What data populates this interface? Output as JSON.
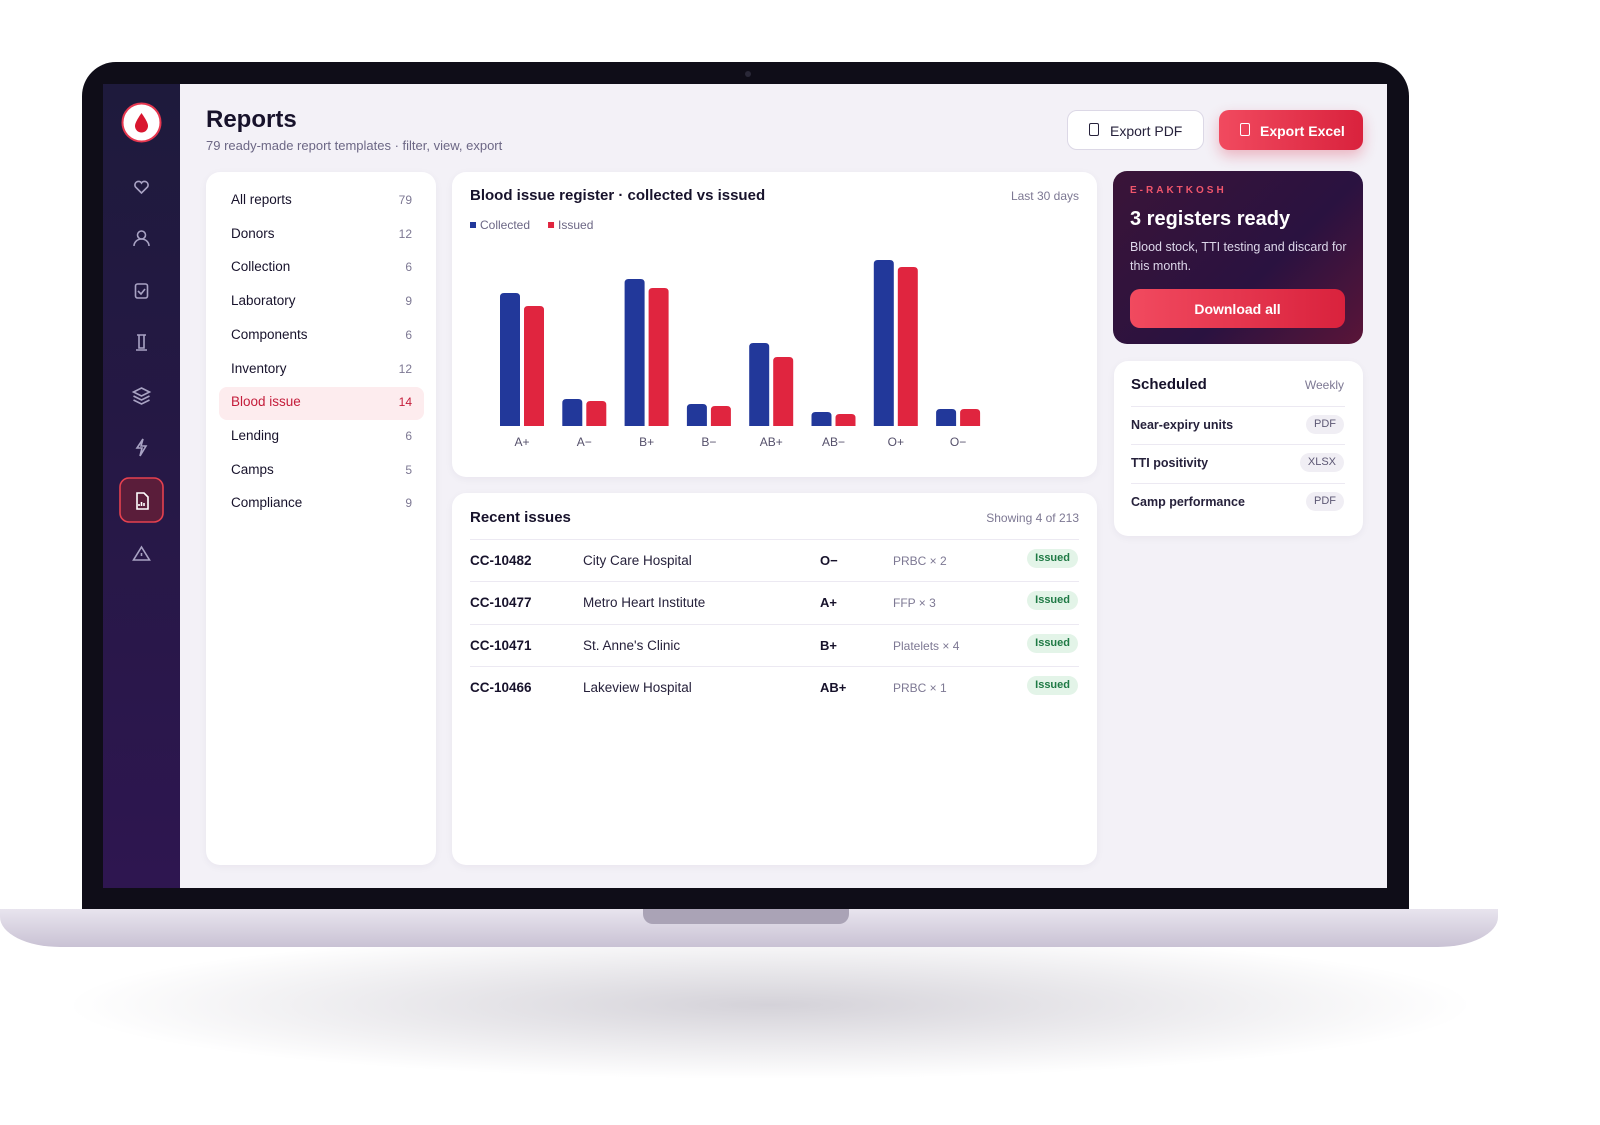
{
  "header": {
    "title": "Reports",
    "subtitle": "79 ready-made report templates · filter, view, export"
  },
  "actions": [
    "Export PDF",
    "Export Excel"
  ],
  "report_categories": [
    {
      "name": "All reports",
      "count": 79
    },
    {
      "name": "Donors",
      "count": 12
    },
    {
      "name": "Collection",
      "count": 6
    },
    {
      "name": "Laboratory",
      "count": 9
    },
    {
      "name": "Components",
      "count": 6
    },
    {
      "name": "Inventory",
      "count": 12
    },
    {
      "name": "Blood issue",
      "count": 14
    },
    {
      "name": "Lending",
      "count": 6
    },
    {
      "name": "Camps",
      "count": 5
    },
    {
      "name": "Compliance",
      "count": 9
    }
  ],
  "chart_data": {
    "type": "bar",
    "title": "Blood issue register · collected vs issued",
    "period": "Last 30 days",
    "categories": [
      "A+",
      "A−",
      "B+",
      "B−",
      "AB+",
      "AB−",
      "O+",
      "O−"
    ],
    "series": [
      {
        "name": "Collected",
        "color": "#22389a",
        "values": [
          133,
          27,
          147,
          22,
          83,
          14,
          166,
          17
        ]
      },
      {
        "name": "Issued",
        "color": "#e0253f",
        "values": [
          120,
          25,
          138,
          20,
          69,
          12,
          159,
          17
        ]
      }
    ]
  },
  "recent_issues": {
    "title": "Recent issues",
    "count_label": "Showing 4 of 213",
    "rows": [
      [
        "CC-10482",
        "City Care Hospital",
        "O−",
        "PRBC × 2",
        "Issued"
      ],
      [
        "CC-10477",
        "Metro Heart Institute",
        "A+",
        "FFP × 3",
        "Issued"
      ],
      [
        "CC-10471",
        "St. Anne's Clinic",
        "B+",
        "Platelets × 4",
        "Issued"
      ],
      [
        "CC-10466",
        "Lakeview Hospital",
        "AB+",
        "PRBC × 1",
        "Issued"
      ]
    ]
  },
  "promo": {
    "eyebrow": "E-RAKTKOSH",
    "title": "3 registers ready",
    "text": "Blood stock, TTI testing and discard for this month.",
    "button": "Download all"
  },
  "scheduled": {
    "title": "Scheduled",
    "frequency": "Weekly",
    "rows": [
      {
        "name": "Near-expiry units",
        "format": "PDF"
      },
      {
        "name": "TTI positivity",
        "format": "XLSX"
      },
      {
        "name": "Camp performance",
        "format": "PDF"
      }
    ]
  }
}
